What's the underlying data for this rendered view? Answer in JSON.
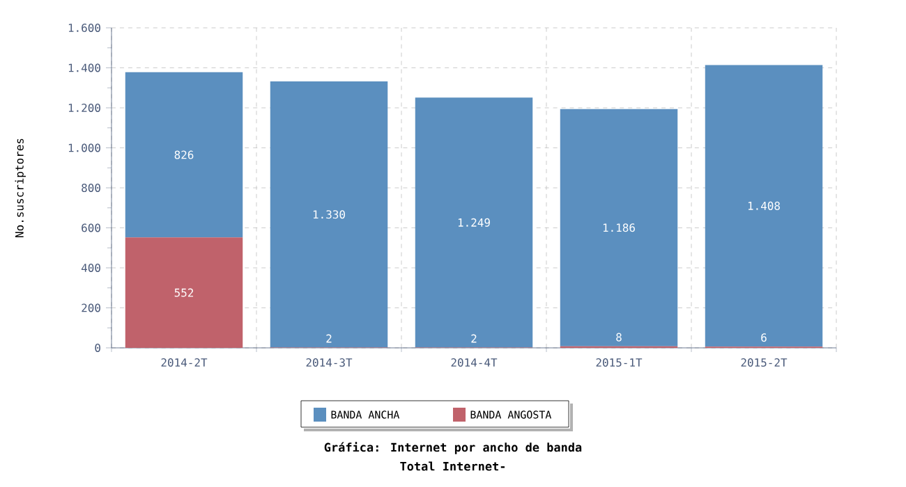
{
  "chart_data": {
    "type": "bar",
    "stacked": true,
    "title": "Gráfica: Internet por ancho de banda",
    "subtitle": "Total Internet-",
    "ylabel": "No.suscriptores",
    "categories": [
      "2014-2T",
      "2014-3T",
      "2014-4T",
      "2015-1T",
      "2015-2T"
    ],
    "series": [
      {
        "name": "BANDA ANGOSTA",
        "color": "#c0626b",
        "values": [
          552,
          2,
          2,
          8,
          6
        ],
        "value_labels": [
          "552",
          "2",
          "2",
          "8",
          "6"
        ]
      },
      {
        "name": "BANDA ANCHA",
        "color": "#5b8fbf",
        "values": [
          826,
          1330,
          1249,
          1186,
          1408
        ],
        "value_labels": [
          "826",
          "1.330",
          "1.249",
          "1.186",
          "1.408"
        ]
      }
    ],
    "ylim": [
      0,
      1600
    ],
    "yticks": [
      0,
      200,
      400,
      600,
      800,
      {
        "value": 1000,
        "label": "1.000"
      },
      {
        "value": 1200,
        "label": "1.200"
      },
      {
        "value": 1400,
        "label": "1.400"
      },
      {
        "value": 1600,
        "label": "1.600"
      }
    ],
    "grid": true,
    "legend": "bottom"
  }
}
